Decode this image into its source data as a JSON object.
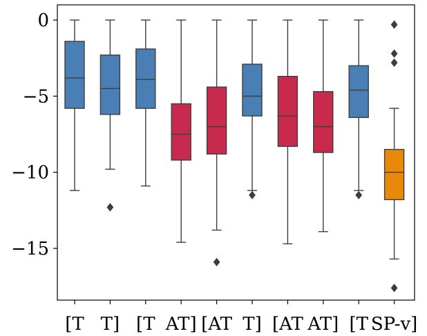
{
  "chart_data": {
    "type": "box",
    "title": "",
    "xlabel": "",
    "ylabel": "",
    "ylim": [
      -18.4,
      1.0
    ],
    "yticks": [
      0,
      -5,
      -10,
      -15
    ],
    "ytick_labels": [
      "0",
      "−5",
      "−10",
      "−15"
    ],
    "grid": false,
    "legend": "none",
    "categories": [
      "[T",
      "T]",
      "[T",
      "AT]",
      "[AT",
      "T]",
      "[AT",
      "AT]",
      "[T",
      "SP-v]"
    ],
    "boxes": [
      {
        "label": "[T",
        "color": "#4a7fb5",
        "whisker_low": -11.2,
        "q1": -5.8,
        "median": -3.8,
        "q3": -1.4,
        "whisker_high": 0.0,
        "outliers": []
      },
      {
        "label": "T]",
        "color": "#4a7fb5",
        "whisker_low": -9.8,
        "q1": -6.2,
        "median": -4.5,
        "q3": -2.3,
        "whisker_high": 0.0,
        "outliers": [
          -12.3
        ]
      },
      {
        "label": "[T",
        "color": "#4a7fb5",
        "whisker_low": -10.9,
        "q1": -5.8,
        "median": -3.9,
        "q3": -1.9,
        "whisker_high": 0.0,
        "outliers": []
      },
      {
        "label": "AT]",
        "color": "#c72a4c",
        "whisker_low": -14.6,
        "q1": -9.2,
        "median": -7.5,
        "q3": -5.5,
        "whisker_high": 0.0,
        "outliers": []
      },
      {
        "label": "[AT",
        "color": "#c72a4c",
        "whisker_low": -13.8,
        "q1": -8.8,
        "median": -7.0,
        "q3": -4.4,
        "whisker_high": 0.0,
        "outliers": [
          -15.9
        ]
      },
      {
        "label": "T]",
        "color": "#4a7fb5",
        "whisker_low": -11.2,
        "q1": -6.3,
        "median": -5.0,
        "q3": -2.9,
        "whisker_high": 0.0,
        "outliers": [
          -11.5
        ]
      },
      {
        "label": "[AT",
        "color": "#c72a4c",
        "whisker_low": -14.7,
        "q1": -8.3,
        "median": -6.3,
        "q3": -3.7,
        "whisker_high": 0.0,
        "outliers": []
      },
      {
        "label": "AT]",
        "color": "#c72a4c",
        "whisker_low": -13.9,
        "q1": -8.7,
        "median": -7.0,
        "q3": -4.7,
        "whisker_high": 0.0,
        "outliers": []
      },
      {
        "label": "[T",
        "color": "#4a7fb5",
        "whisker_low": -11.2,
        "q1": -6.4,
        "median": -4.6,
        "q3": -3.0,
        "whisker_high": 0.0,
        "outliers": [
          -11.5
        ]
      },
      {
        "label": "SP-v]",
        "color": "#e8890c",
        "whisker_low": -15.7,
        "q1": -11.8,
        "median": -10.0,
        "q3": -8.5,
        "whisker_high": -5.8,
        "outliers": [
          -0.3,
          -2.2,
          -2.8,
          -17.6
        ]
      }
    ]
  }
}
